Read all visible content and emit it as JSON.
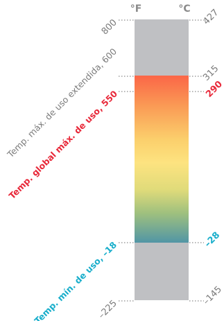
{
  "units": {
    "left": "°F",
    "right": "°C"
  },
  "scale": {
    "f_top": "800",
    "f_bottom": "–225",
    "c_top": "427",
    "c_bottom": "–145"
  },
  "markers": {
    "ext_max": {
      "c": "315",
      "label": "Temp. máx. de uso extendida, 600"
    },
    "global_max": {
      "c": "290",
      "label": "Temp. global máx. de uso, 550"
    },
    "min": {
      "c": "–28",
      "label": "Temp. mín. de uso, –18"
    }
  },
  "colors": {
    "bar_gray": "#bfc0c3",
    "red": "#e8293a",
    "cyan": "#19aecb",
    "text_gray": "#7a7a7a"
  }
}
